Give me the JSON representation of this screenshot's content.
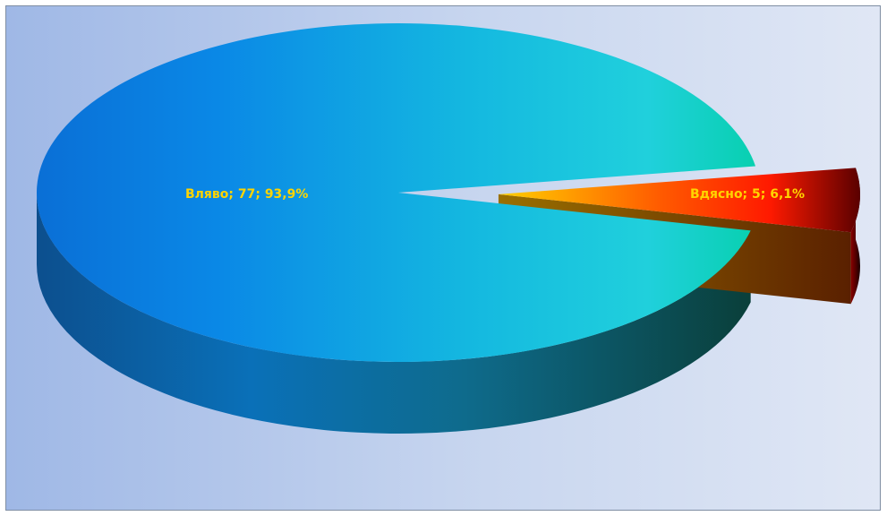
{
  "chart_data": {
    "type": "pie",
    "style": "3d-exploded",
    "slices": [
      {
        "name": "Вляво",
        "value": 77,
        "percent": 93.9,
        "label": "Вляво; 77; 93,9%",
        "color": "#1a8fe0"
      },
      {
        "name": "Вдясно",
        "value": 5,
        "percent": 6.1,
        "label": "Вдясно; 5; 6,1%",
        "color": "#ff2a00"
      }
    ],
    "label_color": "#ffd400",
    "legend": "none"
  }
}
